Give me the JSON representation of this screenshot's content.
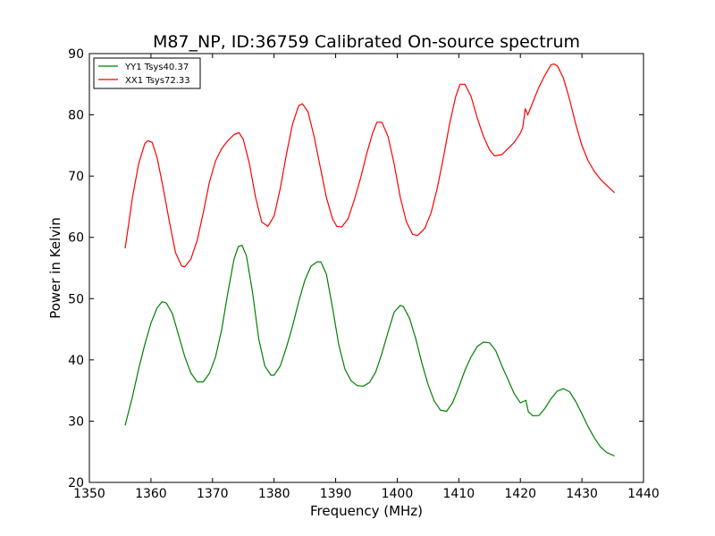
{
  "chart_data": {
    "type": "line",
    "title": "M87_NP, ID:36759 Calibrated On-source spectrum",
    "xlabel": "Frequency (MHz)",
    "ylabel": "Power in Kelvin",
    "xlim": [
      1350,
      1440
    ],
    "ylim": [
      20,
      90
    ],
    "xticks": [
      1350,
      1360,
      1370,
      1380,
      1390,
      1400,
      1410,
      1420,
      1430,
      1440
    ],
    "yticks": [
      20,
      30,
      40,
      50,
      60,
      70,
      80,
      90
    ],
    "grid": false,
    "legend_position": "top-left",
    "series": [
      {
        "name": "YY1 Tsys40.37",
        "color": "#008000",
        "x": [
          1355.8,
          1357,
          1358,
          1359,
          1360,
          1361,
          1361.8,
          1362.5,
          1363.5,
          1364.5,
          1365.5,
          1366.5,
          1367.5,
          1368.5,
          1369.5,
          1370.5,
          1371.5,
          1372.5,
          1373.5,
          1374.2,
          1374.8,
          1375.5,
          1376.5,
          1377.5,
          1378.5,
          1379.5,
          1380,
          1381,
          1382,
          1383,
          1384,
          1385,
          1386,
          1387,
          1387.6,
          1388.5,
          1389.5,
          1390.5,
          1391.5,
          1392.5,
          1393.5,
          1394.5,
          1395.5,
          1396.5,
          1397.5,
          1398.5,
          1399.5,
          1400.5,
          1401,
          1402,
          1403,
          1404,
          1405,
          1406,
          1407,
          1408,
          1409,
          1410,
          1411,
          1412,
          1413,
          1414,
          1415,
          1416,
          1417,
          1418,
          1419,
          1420,
          1420.5,
          1420.9,
          1421.3,
          1422,
          1423,
          1424,
          1425,
          1426,
          1427,
          1428,
          1429,
          1430,
          1431,
          1432,
          1433,
          1434,
          1435.3
        ],
        "y": [
          29.3,
          34,
          38.5,
          42.5,
          46,
          48.5,
          49.5,
          49.3,
          47.5,
          44,
          40.5,
          37.8,
          36.4,
          36.4,
          37.8,
          40.5,
          45,
          51,
          56.5,
          58.5,
          58.7,
          57,
          51,
          43.5,
          39,
          37.5,
          37.5,
          39,
          42,
          45.5,
          49.5,
          53,
          55.3,
          56,
          56,
          54,
          48.5,
          42.5,
          38.5,
          36.6,
          35.8,
          35.7,
          36.3,
          38,
          41,
          44.5,
          47.8,
          48.9,
          48.7,
          46.8,
          43.5,
          39.5,
          36,
          33.3,
          31.8,
          31.6,
          33,
          35.5,
          38.3,
          40.5,
          42.2,
          42.9,
          42.8,
          41.5,
          39,
          36.8,
          34.5,
          33,
          33.2,
          33.4,
          31.5,
          30.9,
          30.9,
          32.1,
          33.7,
          34.9,
          35.3,
          34.8,
          33.2,
          31.2,
          29.1,
          27.3,
          25.8,
          24.9,
          24.3
        ]
      },
      {
        "name": "XX1 Tsys72.33",
        "color": "#ff0000",
        "x": [
          1355.8,
          1357,
          1358,
          1359,
          1359.5,
          1360.2,
          1361,
          1362,
          1363,
          1364,
          1365,
          1365.5,
          1366.5,
          1367.5,
          1368.5,
          1369.5,
          1370.5,
          1371.5,
          1372.5,
          1373.5,
          1374.3,
          1375,
          1376,
          1377,
          1378,
          1379,
          1380,
          1381,
          1382,
          1383,
          1384,
          1384.6,
          1385.5,
          1386.5,
          1387.5,
          1388.5,
          1389.5,
          1390.2,
          1391,
          1392,
          1393,
          1394,
          1395,
          1396,
          1396.7,
          1397.5,
          1398.5,
          1399.5,
          1400.5,
          1401.5,
          1402.5,
          1403.3,
          1404.5,
          1405.5,
          1406.5,
          1407.5,
          1408.5,
          1409.5,
          1410.2,
          1411,
          1412,
          1413,
          1414,
          1415,
          1415.8,
          1417,
          1418,
          1419,
          1420,
          1420.4,
          1420.8,
          1421.2,
          1422,
          1423,
          1424,
          1425,
          1425.5,
          1426,
          1427,
          1428,
          1429,
          1430,
          1431,
          1432,
          1433,
          1434,
          1435.3
        ],
        "y": [
          58.2,
          66.5,
          72,
          75.3,
          75.8,
          75.5,
          73,
          68,
          62.5,
          57.5,
          55.3,
          55.2,
          56.5,
          59.5,
          64,
          69,
          72.5,
          74.5,
          75.8,
          76.8,
          77.1,
          76,
          72,
          66.5,
          62.5,
          61.8,
          63.5,
          68,
          73.5,
          78.5,
          81.5,
          81.8,
          80.5,
          76.5,
          71.5,
          66.5,
          63,
          61.8,
          61.7,
          63,
          66,
          69.5,
          73.5,
          77,
          78.8,
          78.8,
          76.5,
          72,
          66.5,
          62.5,
          60.5,
          60.3,
          61.5,
          64,
          68,
          73,
          78.5,
          83,
          85,
          85,
          83,
          79.5,
          76.5,
          74.3,
          73.3,
          73.5,
          74.5,
          75.5,
          77,
          78,
          81,
          80,
          82,
          84.5,
          86.5,
          88.2,
          88.3,
          88,
          86,
          82.5,
          78.5,
          75,
          72.5,
          70.8,
          69.5,
          68.5,
          67.3
        ]
      }
    ]
  }
}
